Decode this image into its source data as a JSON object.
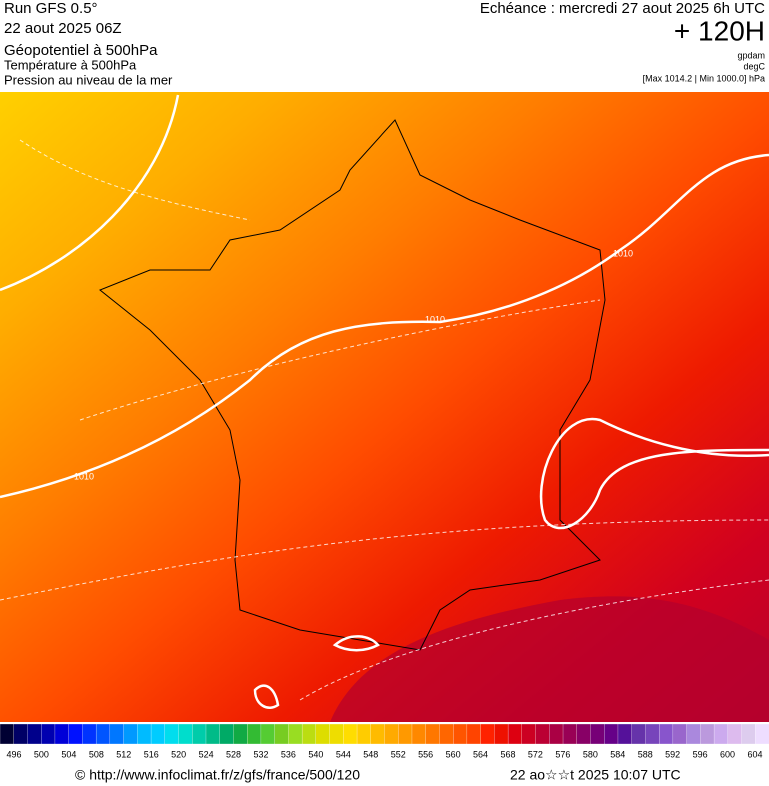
{
  "header": {
    "left": [
      "Run GFS 0.5°",
      "22 aout 2025 06Z",
      "Géopotentiel à 500hPa",
      "Température à 500hPa",
      "Pression au niveau de la mer"
    ],
    "right": {
      "validity": "Echéance : mercredi 27 aout 2025 6h UTC",
      "lead": "+ 120H",
      "units": [
        "gpdam",
        "degC",
        "[Max 1014.2 | Min 1000.0] hPa"
      ]
    }
  },
  "map": {
    "isobar_labels": [
      1010,
      1010,
      1010
    ]
  },
  "scale": {
    "labels": [
      496,
      500,
      504,
      508,
      512,
      516,
      520,
      524,
      528,
      532,
      536,
      540,
      544,
      548,
      552,
      556,
      560,
      564,
      568,
      572,
      576,
      580,
      584,
      588,
      592,
      596,
      600,
      604
    ],
    "colors": [
      "#000033",
      "#000066",
      "#00008b",
      "#0000b0",
      "#0000d8",
      "#0011ff",
      "#0033ff",
      "#0055ff",
      "#0077ff",
      "#0099ff",
      "#00bbff",
      "#00ccff",
      "#00ddee",
      "#00ddcc",
      "#00ccaa",
      "#00bb88",
      "#00aa66",
      "#11aa44",
      "#33bb33",
      "#55cc33",
      "#77cc22",
      "#99dd22",
      "#bbdd11",
      "#dddd00",
      "#eedd00",
      "#ffdd00",
      "#ffcc00",
      "#ffbb00",
      "#ffaa00",
      "#ff9900",
      "#ff8800",
      "#ff7700",
      "#ff6600",
      "#ff5500",
      "#ff4400",
      "#ff2200",
      "#ee1100",
      "#dd0011",
      "#cc0022",
      "#bb0033",
      "#aa0044",
      "#990055",
      "#880066",
      "#770077",
      "#660088",
      "#55119a",
      "#6633aa",
      "#7744bb",
      "#8855cc",
      "#9966cc",
      "#aa88dd",
      "#bb99dd",
      "#ccaaee",
      "#ddbbee",
      "#ddccee",
      "#eeddff"
    ]
  },
  "footer": {
    "source": "© http://www.infoclimat.fr/z/gfs/france/500/120",
    "generated": "22 ao☆☆t 2025 10:07 UTC"
  }
}
